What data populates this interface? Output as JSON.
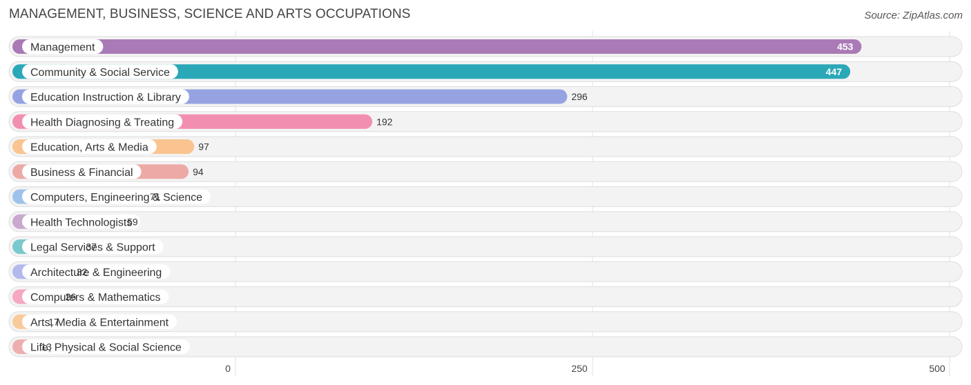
{
  "header": {
    "title": "MANAGEMENT, BUSINESS, SCIENCE AND ARTS OCCUPATIONS",
    "source": "Source: ZipAtlas.com"
  },
  "chart_data": {
    "type": "bar",
    "orientation": "horizontal",
    "title": "MANAGEMENT, BUSINESS, SCIENCE AND ARTS OCCUPATIONS",
    "xlim": [
      0,
      500
    ],
    "xticks": [
      0,
      250,
      500
    ],
    "grid": true,
    "categories": [
      "Management",
      "Community & Social Service",
      "Education Instruction & Library",
      "Health Diagnosing & Treating",
      "Education, Arts & Media",
      "Business & Financial",
      "Computers, Engineering & Science",
      "Health Technologists",
      "Legal Services & Support",
      "Architecture & Engineering",
      "Computers & Mathematics",
      "Arts, Media & Entertainment",
      "Life, Physical & Social Science"
    ],
    "values": [
      453,
      447,
      296,
      192,
      97,
      94,
      71,
      59,
      37,
      32,
      26,
      17,
      13
    ],
    "colors": [
      "#a97ab5",
      "#2aa8b8",
      "#95a3e3",
      "#f28fb0",
      "#f9c48f",
      "#eda9a6",
      "#9fc2ea",
      "#c9a8d0",
      "#79c9cc",
      "#b3b9ec",
      "#f5a8c0",
      "#f9cb9c",
      "#eeaeb0"
    ]
  }
}
